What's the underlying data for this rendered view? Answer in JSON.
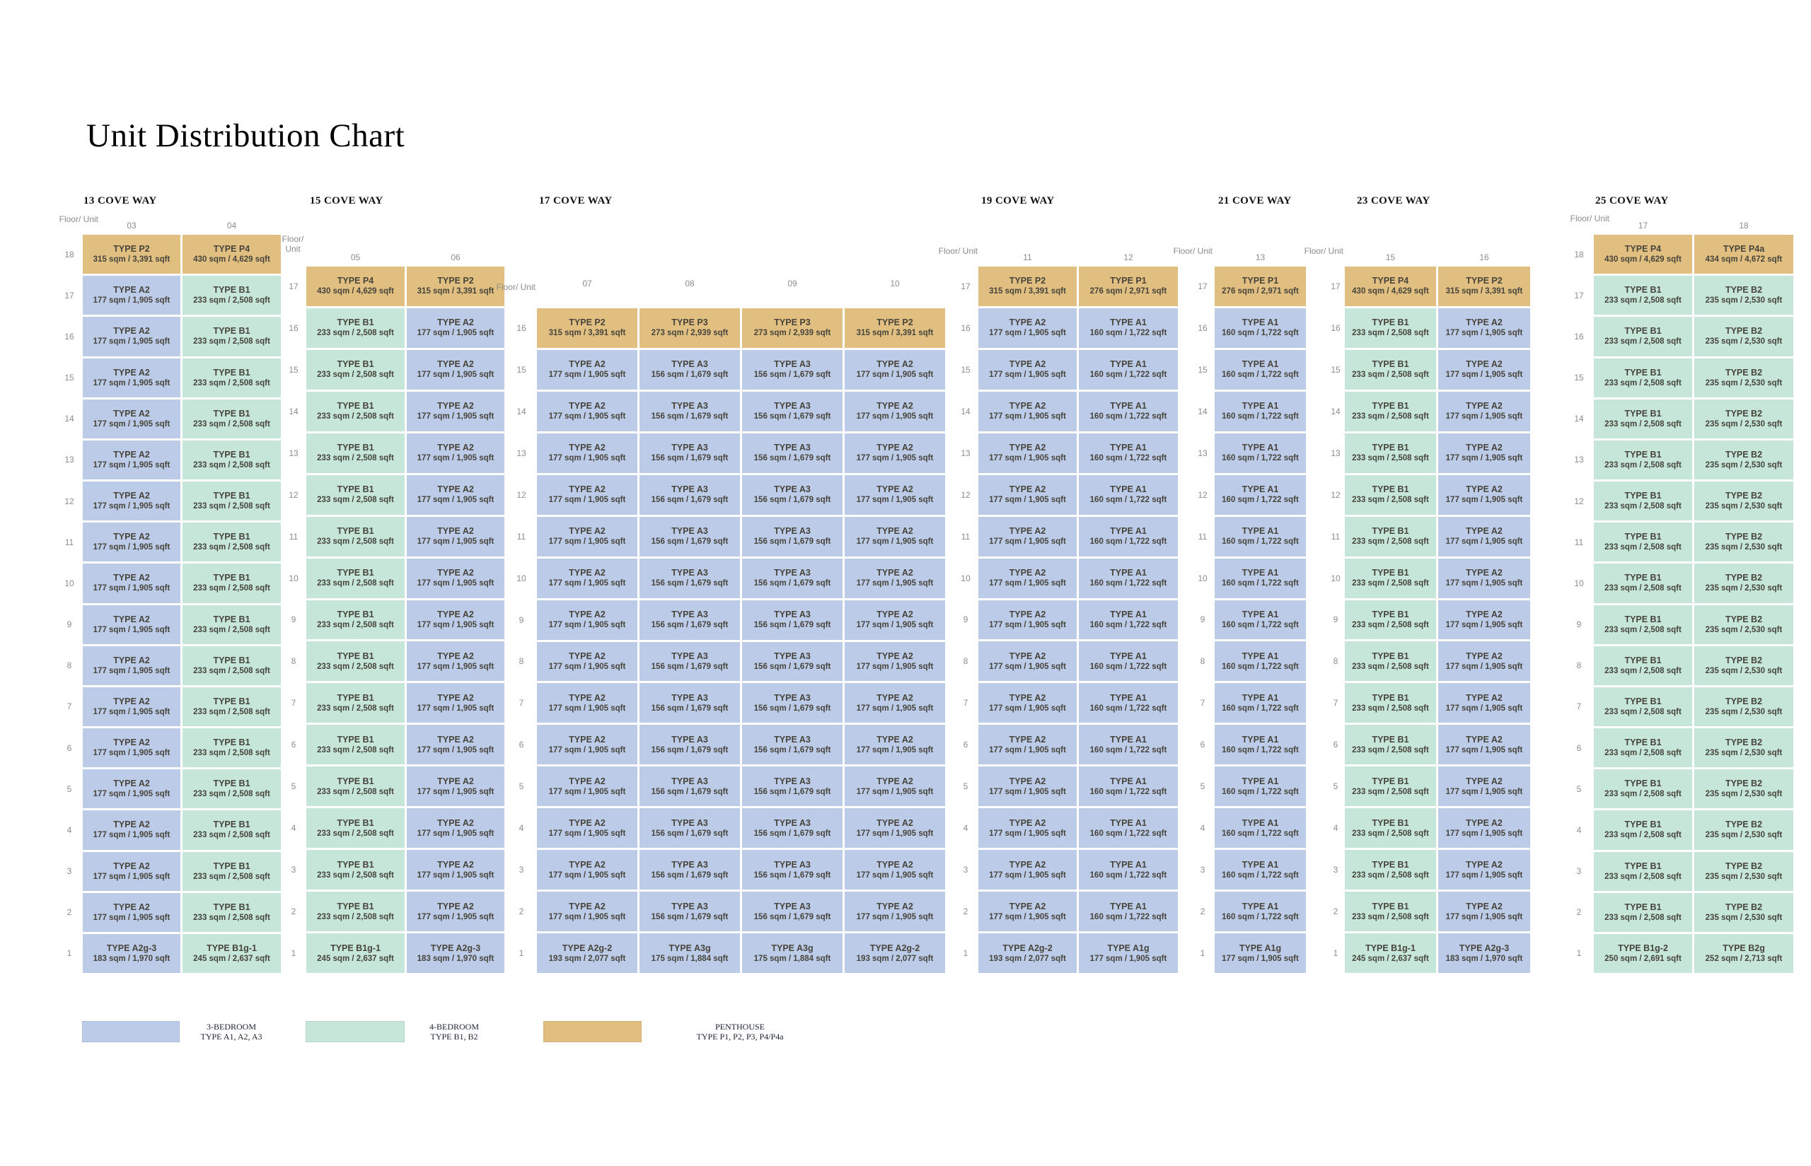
{
  "title": "Unit Distribution Chart",
  "chart_data": {
    "type": "table",
    "title": "Unit Distribution Chart",
    "colors": {
      "bed3": "#bccbe8",
      "bed4": "#c5e6d9",
      "penthouse": "#e1bf81"
    },
    "buildings": [
      {
        "name": "13 COVE WAY",
        "floor_unit_label": "Floor/ Unit",
        "units": [
          "03",
          "04"
        ],
        "rows": [
          {
            "floor": 18,
            "cells": [
              {
                "type": "TYPE P2",
                "size": "315 sqm / 3,391 sqft",
                "category": "penthouse"
              },
              {
                "type": "TYPE P4",
                "size": "430 sqm / 4,629 sqft",
                "category": "penthouse"
              }
            ]
          },
          {
            "floor_from": 17,
            "floor_to": 2,
            "cells": [
              {
                "type": "TYPE A2",
                "size": "177 sqm / 1,905 sqft",
                "category": "bed3"
              },
              {
                "type": "TYPE B1",
                "size": "233 sqm / 2,508 sqft",
                "category": "bed4"
              }
            ]
          },
          {
            "floor": 1,
            "cells": [
              {
                "type": "TYPE A2g-3",
                "size": "183 sqm / 1,970 sqft",
                "category": "bed3"
              },
              {
                "type": "TYPE B1g-1",
                "size": "245 sqm / 2,637 sqft",
                "category": "bed4"
              }
            ]
          }
        ]
      },
      {
        "name": "15 COVE WAY",
        "floor_unit_label": "Floor/ Unit",
        "units": [
          "05",
          "06"
        ],
        "rows": [
          {
            "floor": 17,
            "cells": [
              {
                "type": "TYPE P4",
                "size": "430 sqm / 4,629 sqft",
                "category": "penthouse"
              },
              {
                "type": "TYPE P2",
                "size": "315 sqm / 3,391 sqft",
                "category": "penthouse"
              }
            ]
          },
          {
            "floor_from": 16,
            "floor_to": 2,
            "cells": [
              {
                "type": "TYPE B1",
                "size": "233 sqm / 2,508 sqft",
                "category": "bed4"
              },
              {
                "type": "TYPE A2",
                "size": "177 sqm / 1,905 sqft",
                "category": "bed3"
              }
            ]
          },
          {
            "floor": 1,
            "cells": [
              {
                "type": "TYPE B1g-1",
                "size": "245 sqm / 2,637 sqft",
                "category": "bed4"
              },
              {
                "type": "TYPE A2g-3",
                "size": "183 sqm / 1,970 sqft",
                "category": "bed3"
              }
            ]
          }
        ]
      },
      {
        "name": "17 COVE WAY",
        "floor_unit_label": "Floor/ Unit",
        "units": [
          "07",
          "08",
          "09",
          "10"
        ],
        "rows": [
          {
            "floor": 16,
            "cells": [
              {
                "type": "TYPE P2",
                "size": "315 sqm / 3,391 sqft",
                "category": "penthouse"
              },
              {
                "type": "TYPE P3",
                "size": "273 sqm / 2,939 sqft",
                "category": "penthouse"
              },
              {
                "type": "TYPE P3",
                "size": "273 sqm / 2,939 sqft",
                "category": "penthouse"
              },
              {
                "type": "TYPE P2",
                "size": "315 sqm / 3,391 sqft",
                "category": "penthouse"
              }
            ]
          },
          {
            "floor_from": 15,
            "floor_to": 2,
            "cells": [
              {
                "type": "TYPE A2",
                "size": "177 sqm / 1,905 sqft",
                "category": "bed3"
              },
              {
                "type": "TYPE A3",
                "size": "156 sqm / 1,679 sqft",
                "category": "bed3"
              },
              {
                "type": "TYPE A3",
                "size": "156 sqm / 1,679 sqft",
                "category": "bed3"
              },
              {
                "type": "TYPE A2",
                "size": "177 sqm / 1,905 sqft",
                "category": "bed3"
              }
            ]
          },
          {
            "floor": 1,
            "cells": [
              {
                "type": "TYPE A2g-2",
                "size": "193 sqm / 2,077 sqft",
                "category": "bed3"
              },
              {
                "type": "TYPE A3g",
                "size": "175 sqm / 1,884 sqft",
                "category": "bed3"
              },
              {
                "type": "TYPE A3g",
                "size": "175 sqm / 1,884 sqft",
                "category": "bed3"
              },
              {
                "type": "TYPE A2g-2",
                "size": "193 sqm / 2,077 sqft",
                "category": "bed3"
              }
            ]
          }
        ]
      },
      {
        "name": "19 COVE WAY",
        "floor_unit_label": "Floor/ Unit",
        "units": [
          "11",
          "12"
        ],
        "rows": [
          {
            "floor": 17,
            "cells": [
              {
                "type": "TYPE P2",
                "size": "315 sqm / 3,391 sqft",
                "category": "penthouse"
              },
              {
                "type": "TYPE P1",
                "size": "276 sqm / 2,971 sqft",
                "category": "penthouse"
              }
            ]
          },
          {
            "floor_from": 16,
            "floor_to": 2,
            "cells": [
              {
                "type": "TYPE A2",
                "size": "177 sqm / 1,905 sqft",
                "category": "bed3"
              },
              {
                "type": "TYPE A1",
                "size": "160 sqm / 1,722 sqft",
                "category": "bed3"
              }
            ]
          },
          {
            "floor": 1,
            "cells": [
              {
                "type": "TYPE A2g-2",
                "size": "193 sqm / 2,077 sqft",
                "category": "bed3"
              },
              {
                "type": "TYPE A1g",
                "size": "177 sqm / 1,905 sqft",
                "category": "bed3"
              }
            ]
          }
        ]
      },
      {
        "name": "21 COVE WAY",
        "floor_unit_label": "Floor/ Unit",
        "units": [
          "13"
        ],
        "rows": [
          {
            "floor": 17,
            "cells": [
              {
                "type": "TYPE P1",
                "size": "276 sqm / 2,971 sqft",
                "category": "penthouse"
              }
            ]
          },
          {
            "floor_from": 16,
            "floor_to": 2,
            "cells": [
              {
                "type": "TYPE A1",
                "size": "160 sqm / 1,722 sqft",
                "category": "bed3"
              }
            ]
          },
          {
            "floor": 1,
            "cells": [
              {
                "type": "TYPE A1g",
                "size": "177 sqm / 1,905 sqft",
                "category": "bed3"
              }
            ]
          }
        ]
      },
      {
        "name": "23 COVE WAY",
        "floor_unit_label": "Floor/ Unit",
        "units": [
          "15",
          "16"
        ],
        "rows": [
          {
            "floor": 17,
            "cells": [
              {
                "type": "TYPE P4",
                "size": "430 sqm / 4,629 sqft",
                "category": "penthouse"
              },
              {
                "type": "TYPE P2",
                "size": "315 sqm / 3,391 sqft",
                "category": "penthouse"
              }
            ]
          },
          {
            "floor_from": 16,
            "floor_to": 2,
            "cells": [
              {
                "type": "TYPE B1",
                "size": "233 sqm / 2,508 sqft",
                "category": "bed4"
              },
              {
                "type": "TYPE A2",
                "size": "177 sqm / 1,905 sqft",
                "category": "bed3"
              }
            ]
          },
          {
            "floor": 1,
            "cells": [
              {
                "type": "TYPE B1g-1",
                "size": "245 sqm / 2,637 sqft",
                "category": "bed4"
              },
              {
                "type": "TYPE A2g-3",
                "size": "183 sqm / 1,970 sqft",
                "category": "bed3"
              }
            ]
          }
        ]
      },
      {
        "name": "25 COVE WAY",
        "floor_unit_label": "Floor/ Unit",
        "units": [
          "17",
          "18"
        ],
        "rows": [
          {
            "floor": 18,
            "cells": [
              {
                "type": "TYPE P4",
                "size": "430 sqm / 4,629 sqft",
                "category": "penthouse"
              },
              {
                "type": "TYPE P4a",
                "size": "434 sqm / 4,672 sqft",
                "category": "penthouse"
              }
            ]
          },
          {
            "floor_from": 17,
            "floor_to": 2,
            "cells": [
              {
                "type": "TYPE B1",
                "size": "233 sqm / 2,508 sqft",
                "category": "bed4"
              },
              {
                "type": "TYPE B2",
                "size": "235 sqm / 2,530 sqft",
                "category": "bed4"
              }
            ]
          },
          {
            "floor": 1,
            "cells": [
              {
                "type": "TYPE B1g-2",
                "size": "250 sqm / 2,691 sqft",
                "category": "bed4"
              },
              {
                "type": "TYPE B2g",
                "size": "252 sqm / 2,713 sqft",
                "category": "bed4"
              }
            ]
          }
        ]
      }
    ],
    "legend": [
      {
        "category": "bed3",
        "color": "#bccbe8",
        "line1": "3-BEDROOM",
        "line2": "TYPE A1, A2, A3"
      },
      {
        "category": "bed4",
        "color": "#c5e6d9",
        "line1": "4-BEDROOM",
        "line2": "TYPE B1, B2"
      },
      {
        "category": "penthouse",
        "color": "#e1bf81",
        "line1": "PENTHOUSE",
        "line2": "TYPE P1, P2, P3, P4/P4a"
      }
    ]
  }
}
